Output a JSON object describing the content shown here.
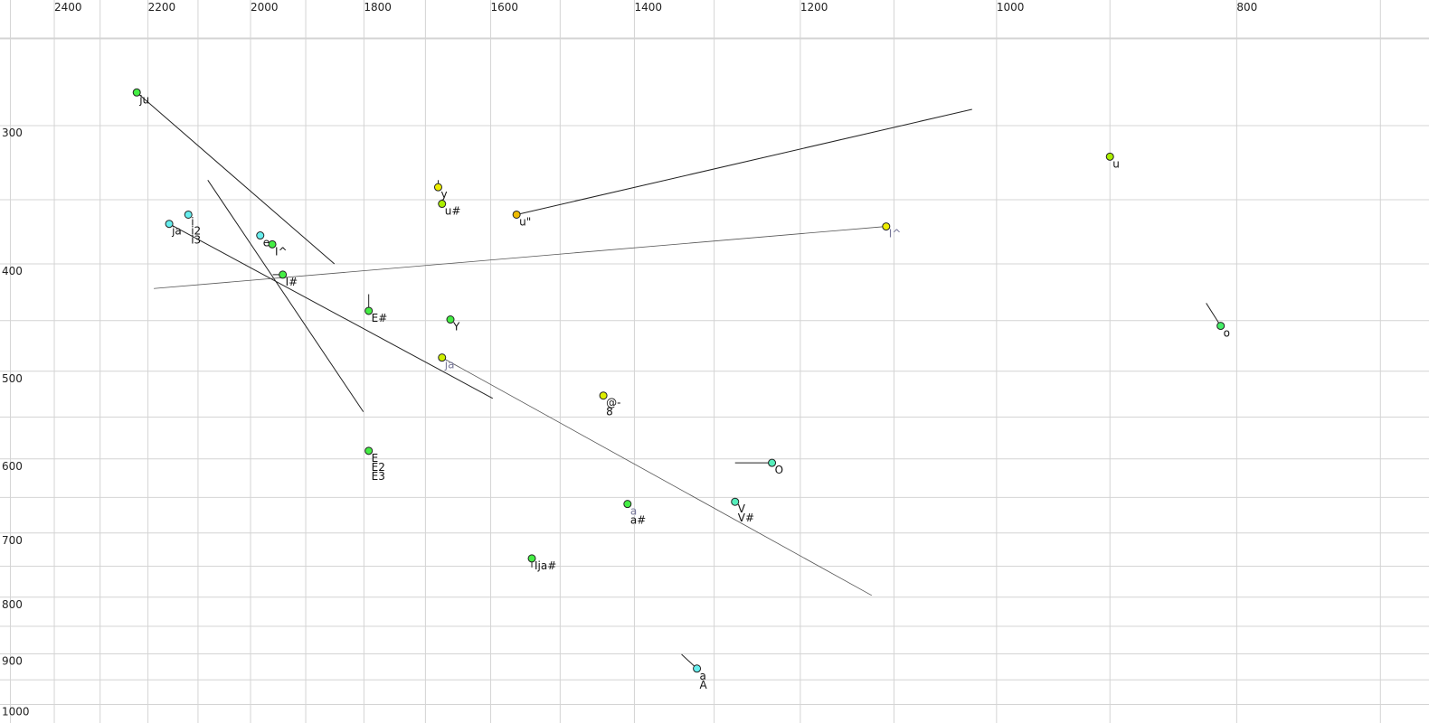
{
  "chart_data": {
    "type": "scatter",
    "title": "",
    "xlabel": "",
    "ylabel": "",
    "x_scale": "log",
    "y_scale": "log",
    "x_reversed": true,
    "x_range": [
      2550,
      690
    ],
    "y_range": [
      240,
      1010
    ],
    "grid": true,
    "x_ticks": [
      2400,
      2200,
      2000,
      1800,
      1600,
      1400,
      1200,
      1000,
      800
    ],
    "x_gridlines": [
      2500,
      2400,
      2300,
      2200,
      2100,
      2000,
      1900,
      1800,
      1700,
      1600,
      1500,
      1400,
      1300,
      1200,
      1100,
      1000,
      900,
      800,
      700
    ],
    "y_ticks": [
      300,
      400,
      500,
      600,
      700,
      800,
      900,
      1000
    ],
    "y_gridlines": [
      250,
      300,
      350,
      400,
      450,
      500,
      550,
      600,
      650,
      700,
      750,
      800,
      850,
      900,
      950,
      1000
    ],
    "points": [
      {
        "F2": 2223,
        "F1": 280,
        "color": "#44ee44",
        "labels": [
          {
            "text": "ju"
          }
        ]
      },
      {
        "F2": 2119,
        "F1": 361,
        "color": "#66eeee",
        "labels": [
          {
            "text": "i"
          },
          {
            "text": "i2"
          },
          {
            "text": "i3"
          }
        ]
      },
      {
        "F2": 2157,
        "F1": 368,
        "color": "#66eeee",
        "labels": [
          {
            "text": "ja"
          }
        ]
      },
      {
        "F2": 1982,
        "F1": 377,
        "color": "#66eeee",
        "labels": [
          {
            "text": "e"
          }
        ]
      },
      {
        "F2": 1960,
        "F1": 384,
        "color": "#44ee44",
        "labels": [
          {
            "text": "I^"
          }
        ]
      },
      {
        "F2": 1941,
        "F1": 409,
        "color": "#44ee44",
        "labels": [
          {
            "text": "I#"
          }
        ]
      },
      {
        "F2": 1792,
        "F1": 441,
        "color": "#44ee44",
        "labels": [
          {
            "text": "E#"
          }
        ]
      },
      {
        "F2": 1680,
        "F1": 341,
        "color": "#eeee00",
        "labels": [
          {
            "text": "y"
          }
        ]
      },
      {
        "F2": 1674,
        "F1": 353,
        "color": "#aaee00",
        "labels": [
          {
            "text": "u#"
          }
        ]
      },
      {
        "F2": 1562,
        "F1": 361,
        "color": "#eebb00",
        "labels": [
          {
            "text": "u\""
          }
        ]
      },
      {
        "F2": 1108,
        "F1": 370,
        "color": "#eeee00",
        "labels": [
          {
            "text": "I^",
            "grey": true
          }
        ]
      },
      {
        "F2": 900,
        "F1": 320,
        "color": "#aaee00",
        "labels": [
          {
            "text": "u"
          }
        ]
      },
      {
        "F2": 1661,
        "F1": 449,
        "color": "#44ee44",
        "labels": [
          {
            "text": "Y"
          }
        ]
      },
      {
        "F2": 1674,
        "F1": 486,
        "color": "#ccee00",
        "labels": [
          {
            "text": "ja",
            "grey": true
          }
        ]
      },
      {
        "F2": 812,
        "F1": 455,
        "color": "#44ee66",
        "labels": [
          {
            "text": "o"
          }
        ]
      },
      {
        "F2": 1441,
        "F1": 526,
        "color": "#ddee00",
        "labels": [
          {
            "text": "@-"
          },
          {
            "text": "8"
          }
        ]
      },
      {
        "F2": 1792,
        "F1": 590,
        "color": "#44ee44",
        "labels": [
          {
            "text": "E"
          },
          {
            "text": "E2"
          },
          {
            "text": "E3"
          }
        ]
      },
      {
        "F2": 1232,
        "F1": 605,
        "color": "#55eebb",
        "labels": [
          {
            "text": "O"
          }
        ]
      },
      {
        "F2": 1409,
        "F1": 659,
        "color": "#44ee44",
        "labels": [
          {
            "text": "a",
            "grey": true
          },
          {
            "text": "a#"
          }
        ]
      },
      {
        "F2": 1275,
        "F1": 656,
        "color": "#55eebb",
        "labels": [
          {
            "text": "V"
          },
          {
            "text": "V#"
          }
        ]
      },
      {
        "F2": 1540,
        "F1": 738,
        "color": "#44ee44",
        "labels": [
          {
            "text": "Ija#"
          }
        ]
      },
      {
        "F2": 1321,
        "F1": 928,
        "color": "#66eeee",
        "labels": [
          {
            "text": "a"
          },
          {
            "text": "A"
          }
        ]
      }
    ],
    "segments": [
      {
        "from": [
          2223,
          280
        ],
        "to": [
          1850,
          400
        ]
      },
      {
        "from": [
          2081,
          336
        ],
        "to": [
          1801,
          544
        ]
      },
      {
        "from": [
          2157,
          368
        ],
        "to": [
          1597,
          529
        ]
      },
      {
        "from": [
          2188,
          421
        ],
        "to": [
          1108,
          370
        ],
        "thin": true
      },
      {
        "from": [
          1562,
          361
        ],
        "to": [
          1023,
          290
        ]
      },
      {
        "from": [
          1674,
          486
        ],
        "to": [
          1123,
          797
        ],
        "thin": true
      },
      {
        "from": [
          812,
          455
        ],
        "to": [
          823,
          434
        ]
      },
      {
        "from": [
          1792,
          441
        ],
        "to": [
          1792,
          426
        ]
      },
      {
        "from": [
          1232,
          605
        ],
        "to": [
          1275,
          605
        ]
      },
      {
        "from": [
          1941,
          409
        ],
        "to": [
          1959,
          409
        ]
      },
      {
        "from": [
          1680,
          341
        ],
        "to": [
          1680,
          336
        ]
      },
      {
        "from": [
          1540,
          738
        ],
        "to": [
          1540,
          752
        ]
      },
      {
        "from": [
          1321,
          928
        ],
        "to": [
          1340,
          901
        ]
      }
    ]
  }
}
